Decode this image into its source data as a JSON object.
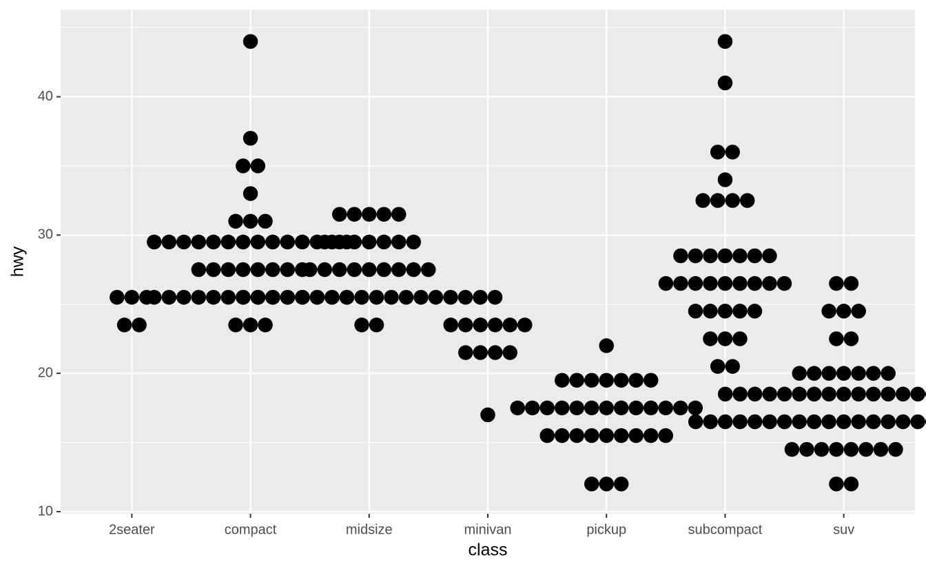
{
  "chart_data": {
    "type": "dotplot",
    "x_label": "class",
    "y_label": "hwy",
    "categories": [
      "2seater",
      "compact",
      "midsize",
      "minivan",
      "pickup",
      "subcompact",
      "suv"
    ],
    "stacks": [
      [
        {
          "value": 25.5,
          "count": 3
        },
        {
          "value": 23.5,
          "count": 2
        }
      ],
      [
        {
          "value": 44,
          "count": 1
        },
        {
          "value": 37,
          "count": 1
        },
        {
          "value": 35,
          "count": 2
        },
        {
          "value": 33,
          "count": 1
        },
        {
          "value": 31,
          "count": 3
        },
        {
          "value": 29.5,
          "count": 14
        },
        {
          "value": 27.5,
          "count": 8
        },
        {
          "value": 25.5,
          "count": 14
        },
        {
          "value": 23.5,
          "count": 3
        }
      ],
      [
        {
          "value": 31.5,
          "count": 5
        },
        {
          "value": 29.5,
          "count": 7
        },
        {
          "value": 27.5,
          "count": 9
        },
        {
          "value": 25.5,
          "count": 18
        },
        {
          "value": 23.5,
          "count": 2
        }
      ],
      [
        {
          "value": 23.5,
          "count": 6
        },
        {
          "value": 21.5,
          "count": 4
        },
        {
          "value": 17,
          "count": 1
        }
      ],
      [
        {
          "value": 22,
          "count": 1
        },
        {
          "value": 19.5,
          "count": 7
        },
        {
          "value": 17.5,
          "count": 13
        },
        {
          "value": 15.5,
          "count": 9
        },
        {
          "value": 12,
          "count": 3
        }
      ],
      [
        {
          "value": 44,
          "count": 1
        },
        {
          "value": 41,
          "count": 1
        },
        {
          "value": 36,
          "count": 2
        },
        {
          "value": 34,
          "count": 1
        },
        {
          "value": 32.5,
          "count": 4
        },
        {
          "value": 28.5,
          "count": 7
        },
        {
          "value": 26.5,
          "count": 9
        },
        {
          "value": 24.5,
          "count": 5
        },
        {
          "value": 22.5,
          "count": 3
        },
        {
          "value": 20.5,
          "count": 2
        }
      ],
      [
        {
          "value": 26.5,
          "count": 2
        },
        {
          "value": 24.5,
          "count": 3
        },
        {
          "value": 22.5,
          "count": 2
        },
        {
          "value": 20,
          "count": 7
        },
        {
          "value": 18.5,
          "count": 17
        },
        {
          "value": 16.5,
          "count": 21
        },
        {
          "value": 14.5,
          "count": 8
        },
        {
          "value": 12,
          "count": 2
        }
      ]
    ],
    "color": "#000000",
    "ylim": [
      9.85,
      46.3
    ],
    "yticks": [
      10,
      20,
      30,
      40
    ],
    "minor_yticks": [
      15,
      25,
      35,
      45
    ],
    "grid": true
  }
}
